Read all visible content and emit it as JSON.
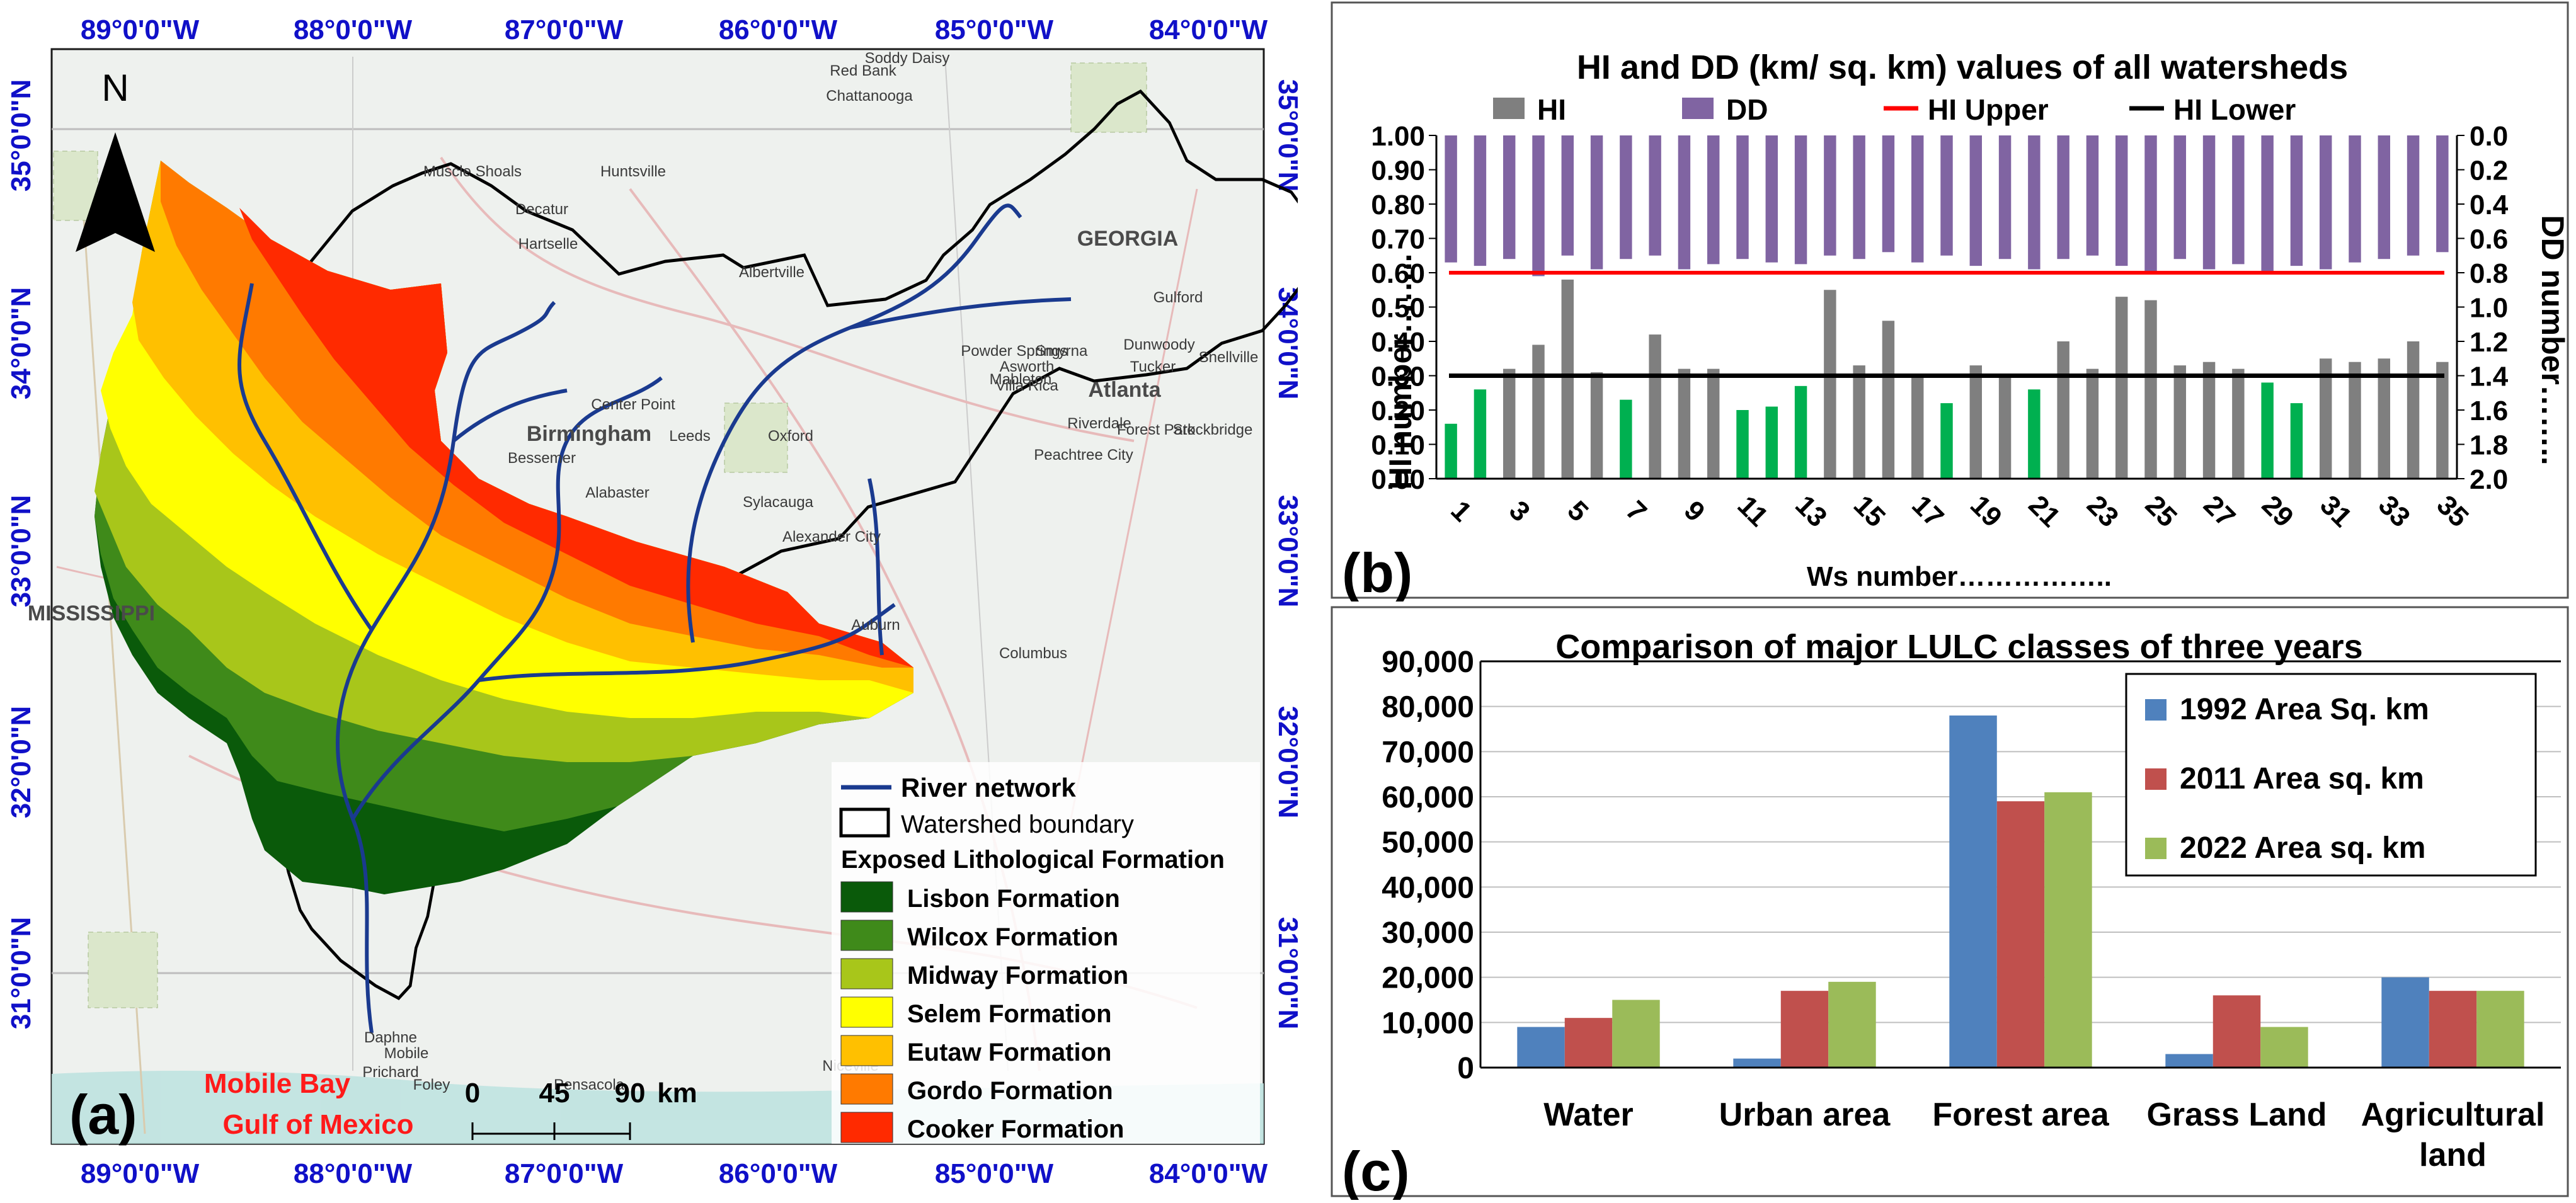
{
  "figure": {
    "panel_a_label": "(a)",
    "panel_b_label": "(b)",
    "panel_c_label": "(c)"
  },
  "map": {
    "north_label": "N",
    "top_longitudes": [
      "89°0'0\"W",
      "88°0'0\"W",
      "87°0'0\"W",
      "86°0'0\"W",
      "85°0'0\"W",
      "84°0'0\"W"
    ],
    "bottom_longitudes": [
      "89°0'0\"W",
      "88°0'0\"W",
      "87°0'0\"W",
      "86°0'0\"W",
      "85°0'0\"W",
      "84°0'0\"W"
    ],
    "left_latitudes": [
      "35°0'0\"N",
      "34°0'0\"N",
      "33°0'0\"N",
      "32°0'0\"N",
      "31°0'0\"N"
    ],
    "right_latitudes": [
      "35°0'0\"N",
      "34°0'0\"N",
      "33°0'0\"N",
      "32°0'0\"N",
      "31°0'0\"N"
    ],
    "water_labels": [
      "Mobile Bay",
      "Gulf of Mexico"
    ],
    "scale_labels": [
      "0",
      "45",
      "90",
      "km"
    ],
    "places": [
      "Muscle Shoals",
      "Huntsville",
      "Decatur",
      "Hartselle",
      "Albertville",
      "Birmingham",
      "Bessemer",
      "Center Point",
      "Leeds",
      "Oxford",
      "Alabaster",
      "Sylacauga",
      "Alexander City",
      "Atlanta",
      "Asworth",
      "Dunwoody",
      "Snellville",
      "Tucker",
      "Riverdale",
      "Peachtree City",
      "Forest Park",
      "Stockbridge",
      "Auburn",
      "Columbus",
      "Prichard",
      "Mobile",
      "Daphne",
      "Foley",
      "Pensacola",
      "Niceville",
      "Chattanooga",
      "Red Bank",
      "Soddy Daisy",
      "GEORGIA",
      "MISSISSIPPI",
      "Gulford",
      "Powder Springs",
      "Smyrna",
      "Mableton",
      "Villa Rica"
    ],
    "legend": {
      "river": "River network",
      "boundary": "Watershed boundary",
      "title": "Exposed Lithological Formation",
      "formations": [
        {
          "label": "Lisbon Formation",
          "color": "#0a5a0a"
        },
        {
          "label": "Wilcox Formation",
          "color": "#3f8a1a"
        },
        {
          "label": "Midway Formation",
          "color": "#a8c61a"
        },
        {
          "label": "Selem Formation",
          "color": "#ffff00"
        },
        {
          "label": "Eutaw Formation",
          "color": "#ffc000"
        },
        {
          "label": "Gordo Formation",
          "color": "#ff7a00"
        },
        {
          "label": "Cooker Formation",
          "color": "#ff2a00"
        }
      ]
    }
  },
  "chart_data": [
    {
      "type": "bar",
      "title": "HI and  DD (km/ sq. km) values of all watersheds",
      "legend": [
        "HI",
        "DD",
        "HI Upper",
        "HI Lower"
      ],
      "xlabel": "Ws number……………..",
      "ylabel": "HI number……..",
      "y2label": "DD number……..",
      "ylim": [
        0,
        1
      ],
      "y2lim": [
        0,
        2
      ],
      "y2_inverted": true,
      "y_ticks": [
        "0.00",
        "0.10",
        "0.20",
        "0.30",
        "0.40",
        "0.50",
        "0.60",
        "0.70",
        "0.80",
        "0.90",
        "1.00"
      ],
      "y2_ticks": [
        "0.0",
        "0.2",
        "0.4",
        "0.6",
        "0.8",
        "1.0",
        "1.2",
        "1.4",
        "1.6",
        "1.8",
        "2.0"
      ],
      "x_ticks": [
        "1",
        "3",
        "5",
        "7",
        "9",
        "11",
        "13",
        "15",
        "17",
        "19",
        "21",
        "23",
        "25",
        "27",
        "29",
        "31",
        "33",
        "35"
      ],
      "categories": [
        "1",
        "2",
        "3",
        "4",
        "5",
        "6",
        "7",
        "8",
        "9",
        "10",
        "11",
        "12",
        "13",
        "14",
        "15",
        "16",
        "17",
        "18",
        "19",
        "20",
        "21",
        "22",
        "23",
        "24",
        "25",
        "26",
        "27",
        "28",
        "29",
        "30",
        "31",
        "32",
        "33",
        "34",
        "35"
      ],
      "hi_upper": 0.6,
      "hi_lower": 0.3,
      "colors": {
        "hi_high": "#7f7f7f",
        "hi_low": "#00b050",
        "dd": "#8064a2",
        "upper": "#ff0000",
        "lower": "#000000"
      },
      "series": [
        {
          "name": "HI",
          "values": [
            0.16,
            0.26,
            0.32,
            0.39,
            0.58,
            0.31,
            0.23,
            0.42,
            0.32,
            0.32,
            0.2,
            0.21,
            0.27,
            0.55,
            0.33,
            0.46,
            0.3,
            0.22,
            0.33,
            0.3,
            0.26,
            0.4,
            0.32,
            0.53,
            0.52,
            0.33,
            0.34,
            0.32,
            0.28,
            0.22,
            0.35,
            0.34,
            0.35,
            0.4,
            0.34
          ]
        },
        {
          "name": "DD",
          "values": [
            0.74,
            0.76,
            0.72,
            0.82,
            0.7,
            0.78,
            0.72,
            0.7,
            0.78,
            0.75,
            0.72,
            0.74,
            0.75,
            0.7,
            0.72,
            0.68,
            0.74,
            0.7,
            0.76,
            0.72,
            0.78,
            0.72,
            0.7,
            0.76,
            0.8,
            0.72,
            0.78,
            0.75,
            0.8,
            0.76,
            0.78,
            0.74,
            0.72,
            0.7,
            0.68
          ]
        }
      ]
    },
    {
      "type": "bar",
      "title": "Comparison of major LULC classes of three years",
      "categories": [
        "Water",
        "Urban area",
        "Forest area",
        "Grass Land",
        "Agricultural land"
      ],
      "category_lines": [
        [
          "Water"
        ],
        [
          "Urban area"
        ],
        [
          "Forest area"
        ],
        [
          "Grass Land"
        ],
        [
          "Agricultural",
          "land"
        ]
      ],
      "ylim": [
        0,
        90000
      ],
      "y_ticks": [
        "0",
        "10,000",
        "20,000",
        "30,000",
        "40,000",
        "50,000",
        "60,000",
        "70,000",
        "80,000",
        "90,000"
      ],
      "legend_position": "top-right",
      "series": [
        {
          "name": "1992 Area Sq. km",
          "color": "#4f81bd",
          "values": [
            9000,
            2000,
            78000,
            3000,
            20000
          ]
        },
        {
          "name": "2011 Area sq. km",
          "color": "#c0504d",
          "values": [
            11000,
            17000,
            59000,
            16000,
            17000
          ]
        },
        {
          "name": "2022 Area sq. km",
          "color": "#9bbb59",
          "values": [
            15000,
            19000,
            61000,
            9000,
            17000
          ]
        }
      ]
    }
  ]
}
